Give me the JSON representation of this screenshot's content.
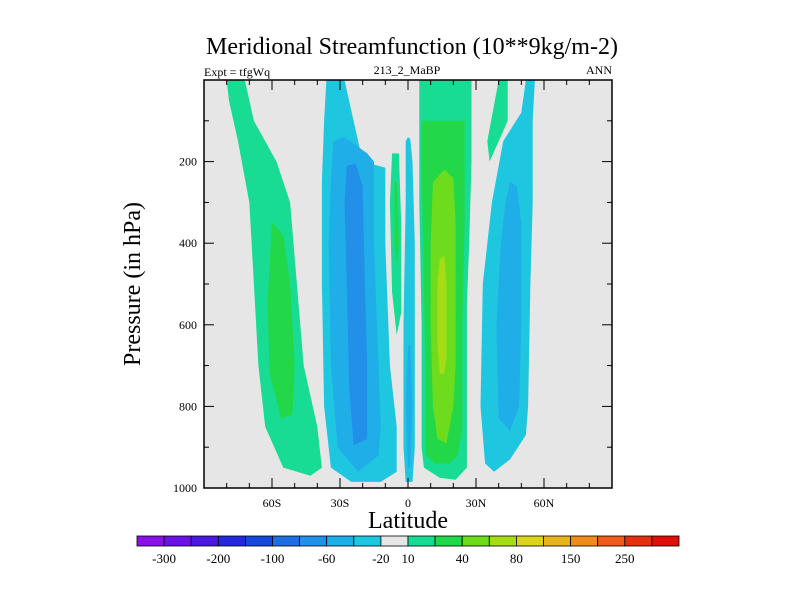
{
  "chart_data": {
    "type": "heatmap",
    "title": "Meridional Streamfunction (10**9kg/m-2)",
    "left_string": "Expt = tfgWq",
    "center_string": "213_2_MaBP",
    "right_string": "ANN",
    "xlabel": "Latitude",
    "ylabel": "Pressure (in hPa)",
    "xlim": [
      -90,
      90
    ],
    "ylim": [
      1000,
      0
    ],
    "x_ticks": [
      {
        "value": -60,
        "label": "60S"
      },
      {
        "value": -30,
        "label": "30S"
      },
      {
        "value": 0,
        "label": "0"
      },
      {
        "value": 30,
        "label": "30N"
      },
      {
        "value": 60,
        "label": "60N"
      }
    ],
    "y_ticks": [
      {
        "value": 200,
        "label": "200"
      },
      {
        "value": 400,
        "label": "400"
      },
      {
        "value": 600,
        "label": "600"
      },
      {
        "value": 800,
        "label": "800"
      },
      {
        "value": 1000,
        "label": "1000"
      }
    ],
    "colorbar": {
      "colors": [
        "#8a10e8",
        "#6a10e8",
        "#4a18e0",
        "#2428dc",
        "#1448dc",
        "#1e6ee0",
        "#2290e8",
        "#20aee8",
        "#1ec6e0",
        "#e6e6e6",
        "#18dc94",
        "#22d848",
        "#6cdc1c",
        "#a6dc14",
        "#dcd41c",
        "#e8b41e",
        "#ee8a1e",
        "#ec5c1a",
        "#e4300e",
        "#e00d08"
      ],
      "labels": [
        "-300",
        "-200",
        "-100",
        "-60",
        "-20",
        "10",
        "40",
        "80",
        "150",
        "250"
      ],
      "label_positions": [
        1,
        3,
        5,
        7,
        9,
        10,
        12,
        14,
        16,
        18
      ]
    },
    "regions": [
      {
        "name": "sh-polar-cell",
        "level": "10..20",
        "color": "#18dc94",
        "polygon": [
          [
            -80,
            0
          ],
          [
            -72,
            0
          ],
          [
            -68,
            100
          ],
          [
            -58,
            200
          ],
          [
            -52,
            300
          ],
          [
            -49,
            500
          ],
          [
            -46,
            700
          ],
          [
            -40,
            850
          ],
          [
            -38,
            950
          ],
          [
            -43,
            970
          ],
          [
            -55,
            950
          ],
          [
            -63,
            850
          ],
          [
            -66,
            700
          ],
          [
            -68,
            500
          ],
          [
            -70,
            300
          ],
          [
            -75,
            150
          ],
          [
            -79,
            50
          ]
        ]
      },
      {
        "name": "sh-polar-cell-core",
        "level": "20..40",
        "color": "#22d848",
        "polygon": [
          [
            -60,
            350
          ],
          [
            -55,
            380
          ],
          [
            -52,
            500
          ],
          [
            -50,
            700
          ],
          [
            -51,
            820
          ],
          [
            -56,
            830
          ],
          [
            -61,
            720
          ],
          [
            -62,
            550
          ]
        ]
      },
      {
        "name": "sh-ferrel-cell",
        "level": "-20..-10",
        "color": "#1ec6e0",
        "polygon": [
          [
            -36,
            0
          ],
          [
            -28,
            0
          ],
          [
            -24,
            100
          ],
          [
            -20,
            200
          ],
          [
            -10,
            215
          ],
          [
            -10,
            400
          ],
          [
            -8,
            700
          ],
          [
            -5,
            850
          ],
          [
            -5,
            960
          ],
          [
            -12,
            985
          ],
          [
            -25,
            985
          ],
          [
            -34,
            950
          ],
          [
            -37,
            800
          ],
          [
            -38,
            500
          ],
          [
            -38,
            250
          ],
          [
            -37,
            100
          ]
        ]
      },
      {
        "name": "sh-ferrel-cell-inner",
        "level": "-60..-20",
        "color": "#20aee8",
        "polygon": [
          [
            -33,
            150
          ],
          [
            -28,
            140
          ],
          [
            -18,
            180
          ],
          [
            -15,
            200
          ],
          [
            -15,
            400
          ],
          [
            -13,
            700
          ],
          [
            -12,
            850
          ],
          [
            -13,
            920
          ],
          [
            -22,
            960
          ],
          [
            -31,
            900
          ],
          [
            -34,
            700
          ],
          [
            -35,
            400
          ],
          [
            -34,
            250
          ]
        ]
      },
      {
        "name": "sh-ferrel-cell-core",
        "level": "-100..-60",
        "color": "#2290e8",
        "polygon": [
          [
            -27,
            210
          ],
          [
            -23,
            205
          ],
          [
            -20,
            260
          ],
          [
            -19,
            500
          ],
          [
            -18,
            700
          ],
          [
            -18,
            880
          ],
          [
            -24,
            895
          ],
          [
            -26,
            750
          ],
          [
            -27,
            500
          ],
          [
            -28,
            300
          ]
        ]
      },
      {
        "name": "eq-positive-strip",
        "level": "10..20",
        "color": "#18dc94",
        "polygon": [
          [
            -7,
            180
          ],
          [
            -4,
            180
          ],
          [
            -3,
            350
          ],
          [
            -3,
            570
          ],
          [
            -5,
            625
          ],
          [
            -7,
            520
          ],
          [
            -8,
            300
          ]
        ]
      },
      {
        "name": "eq-positive-strip-core",
        "level": "20..40",
        "color": "#22d848",
        "polygon": [
          [
            -6,
            250
          ],
          [
            -5,
            250
          ],
          [
            -4,
            400
          ],
          [
            -5,
            450
          ],
          [
            -6,
            400
          ]
        ]
      },
      {
        "name": "eq-negative-strip",
        "level": "-20..-10",
        "color": "#1ec6e0",
        "polygon": [
          [
            -1,
            150
          ],
          [
            0,
            140
          ],
          [
            1,
            145
          ],
          [
            2,
            200
          ],
          [
            3,
            400
          ],
          [
            3,
            700
          ],
          [
            3,
            900
          ],
          [
            2,
            985
          ],
          [
            -1,
            985
          ],
          [
            -2,
            900
          ],
          [
            -2,
            600
          ],
          [
            -1,
            300
          ]
        ]
      },
      {
        "name": "eq-negative-strip-core",
        "level": "-60..-20",
        "color": "#20aee8",
        "polygon": [
          [
            0,
            650
          ],
          [
            1,
            650
          ],
          [
            2,
            800
          ],
          [
            1,
            950
          ],
          [
            0,
            950
          ],
          [
            -1,
            800
          ]
        ]
      },
      {
        "name": "nh-hadley-cell",
        "level": "10..20",
        "color": "#18dc94",
        "polygon": [
          [
            5,
            0
          ],
          [
            28,
            0
          ],
          [
            28,
            200
          ],
          [
            27,
            400
          ],
          [
            26,
            550
          ],
          [
            26,
            800
          ],
          [
            26,
            950
          ],
          [
            21,
            980
          ],
          [
            14,
            975
          ],
          [
            7,
            950
          ],
          [
            6,
            900
          ],
          [
            6,
            600
          ],
          [
            5,
            300
          ]
        ]
      },
      {
        "name": "nh-hadley-cell-mid",
        "level": "20..40",
        "color": "#22d848",
        "polygon": [
          [
            6,
            100
          ],
          [
            25,
            100
          ],
          [
            25,
            350
          ],
          [
            24,
            600
          ],
          [
            24,
            850
          ],
          [
            22,
            920
          ],
          [
            18,
            940
          ],
          [
            12,
            940
          ],
          [
            8,
            920
          ],
          [
            8,
            800
          ],
          [
            7,
            500
          ],
          [
            6,
            200
          ]
        ]
      },
      {
        "name": "nh-hadley-cell-inner",
        "level": "40..80",
        "color": "#6cdc1c",
        "polygon": [
          [
            11,
            250
          ],
          [
            16,
            220
          ],
          [
            20,
            240
          ],
          [
            21,
            350
          ],
          [
            21,
            500
          ],
          [
            21,
            700
          ],
          [
            20,
            800
          ],
          [
            17,
            890
          ],
          [
            13,
            880
          ],
          [
            11,
            800
          ],
          [
            10,
            600
          ],
          [
            10,
            400
          ]
        ]
      },
      {
        "name": "nh-hadley-cell-core",
        "level": "80..150",
        "color": "#a6dc14",
        "polygon": [
          [
            14,
            440
          ],
          [
            16,
            430
          ],
          [
            17,
            500
          ],
          [
            17,
            680
          ],
          [
            16,
            720
          ],
          [
            14,
            720
          ],
          [
            13,
            650
          ],
          [
            13,
            500
          ]
        ]
      },
      {
        "name": "nh-ferrel-cell",
        "level": "-20..-10",
        "color": "#1ec6e0",
        "polygon": [
          [
            52,
            0
          ],
          [
            56,
            0
          ],
          [
            55,
            100
          ],
          [
            55,
            300
          ],
          [
            54,
            500
          ],
          [
            53,
            800
          ],
          [
            52,
            870
          ],
          [
            45,
            930
          ],
          [
            38,
            960
          ],
          [
            34,
            940
          ],
          [
            32,
            800
          ],
          [
            33,
            500
          ],
          [
            37,
            300
          ],
          [
            42,
            150
          ],
          [
            50,
            80
          ]
        ]
      },
      {
        "name": "nh-ferrel-cell-core",
        "level": "-60..-20",
        "color": "#20aee8",
        "polygon": [
          [
            45,
            250
          ],
          [
            48,
            260
          ],
          [
            50,
            350
          ],
          [
            50,
            600
          ],
          [
            49,
            800
          ],
          [
            45,
            860
          ],
          [
            40,
            830
          ],
          [
            39,
            600
          ],
          [
            41,
            400
          ],
          [
            43,
            300
          ]
        ]
      },
      {
        "name": "north-polar-strip",
        "level": "10..20",
        "color": "#18dc94",
        "polygon": [
          [
            40,
            0
          ],
          [
            44,
            0
          ],
          [
            44,
            100
          ],
          [
            40,
            150
          ],
          [
            36,
            200
          ],
          [
            35,
            150
          ]
        ]
      }
    ]
  }
}
